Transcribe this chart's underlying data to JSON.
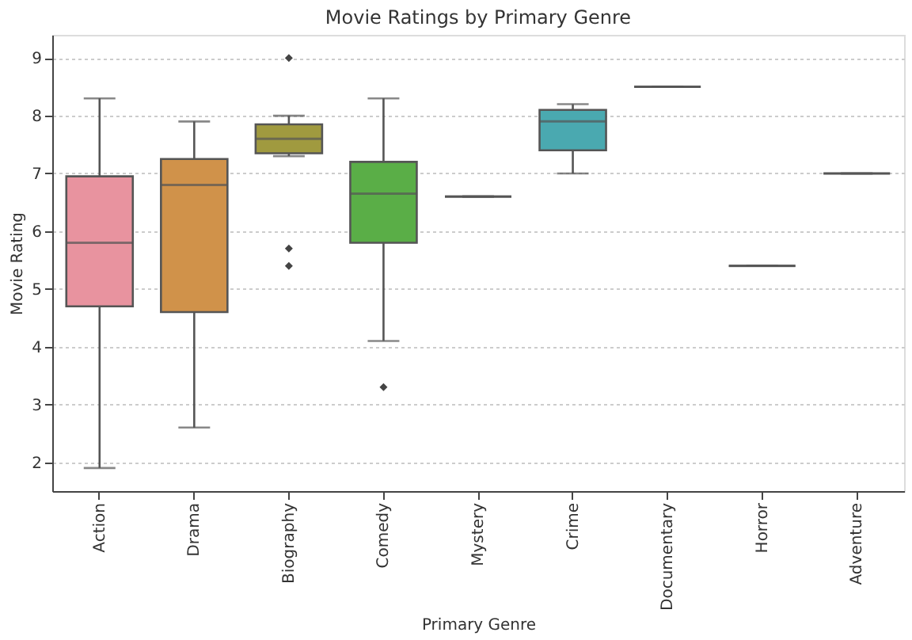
{
  "chart_data": {
    "type": "box",
    "title": "Movie Ratings by Primary Genre",
    "xlabel": "Primary Genre",
    "ylabel": "Movie Rating",
    "categories": [
      "Action",
      "Drama",
      "Biography",
      "Comedy",
      "Mystery",
      "Crime",
      "Documentary",
      "Horror",
      "Adventure"
    ],
    "colors": [
      "#e8939f",
      "#d0924a",
      "#a09a3f",
      "#5aae47",
      null,
      "#4aa9b0",
      null,
      null,
      null
    ],
    "boxes": [
      {
        "low": 1.9,
        "q1": 4.7,
        "median": 5.8,
        "q3": 6.95,
        "high": 8.3
      },
      {
        "low": 2.6,
        "q1": 4.6,
        "median": 6.8,
        "q3": 7.25,
        "high": 7.9
      },
      {
        "low": 7.3,
        "q1": 7.35,
        "median": 7.6,
        "q3": 7.85,
        "high": 8.0,
        "outliers": [
          9.0,
          5.7,
          5.4
        ]
      },
      {
        "low": 4.1,
        "q1": 5.8,
        "median": 6.65,
        "q3": 7.2,
        "high": 8.3,
        "outliers": [
          3.3
        ]
      },
      {
        "low": 6.6,
        "q1": 6.6,
        "median": 6.6,
        "q3": 6.6,
        "high": 6.6
      },
      {
        "low": 7.0,
        "q1": 7.4,
        "median": 7.9,
        "q3": 8.1,
        "high": 8.2
      },
      {
        "low": 8.5,
        "q1": 8.5,
        "median": 8.5,
        "q3": 8.5,
        "high": 8.5
      },
      {
        "low": 5.4,
        "q1": 5.4,
        "median": 5.4,
        "q3": 5.4,
        "high": 5.4
      },
      {
        "low": 7.0,
        "q1": 7.0,
        "median": 7.0,
        "q3": 7.0,
        "high": 7.0
      }
    ],
    "ylim": [
      1.5,
      9.4
    ],
    "yticks": [
      2,
      3,
      4,
      5,
      6,
      7,
      8,
      9
    ],
    "grid": "y"
  }
}
